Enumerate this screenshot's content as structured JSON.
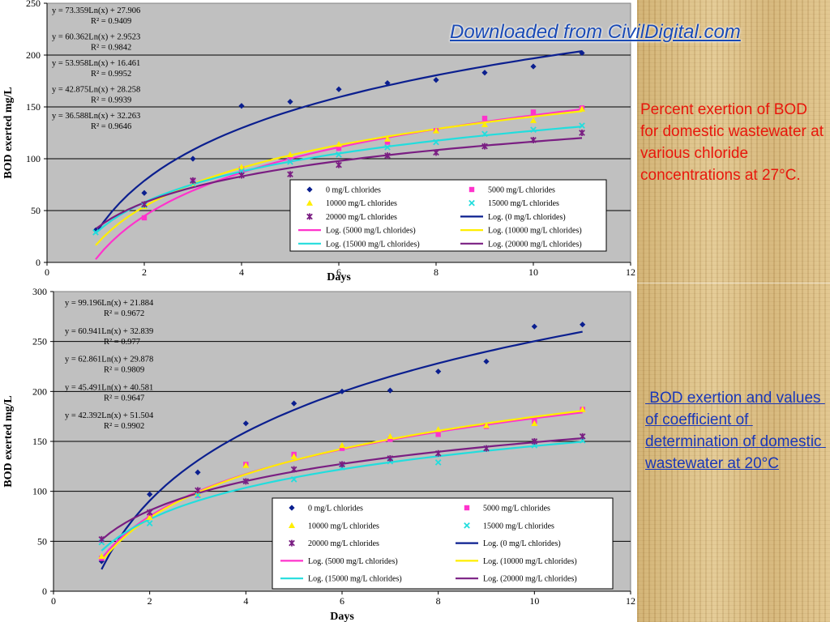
{
  "watermark": "Downloaded from CivilDigital.com",
  "captions": {
    "top": "Percent exertion of BOD for domestic wastewater at various chloride concentrations at 27°C.",
    "bottom": " BOD exertion and values of coefficient of determination of domestic wastewater at 20°C"
  },
  "colors": {
    "plot_bg": "#c0c0c0",
    "s0": "#0b1f8f",
    "s5000": "#ff33cc",
    "s10000": "#ffee00",
    "s15000": "#22dddd",
    "s20000": "#7a1e82"
  },
  "chart_data": [
    {
      "type": "scatter",
      "xlabel": "Days",
      "ylabel": "BOD exerted mg/L",
      "xlim": [
        0,
        12
      ],
      "ylim": [
        0,
        250
      ],
      "xticks": [
        "0",
        "2",
        "4",
        "6",
        "8",
        "10",
        "12"
      ],
      "yticks": [
        "0",
        "50",
        "100",
        "150",
        "200",
        "250"
      ],
      "grid": "horizontal",
      "legend_position": "bottom-right",
      "equations": [
        {
          "eq": "y = 73.359Ln(x) + 27.906",
          "r2": "R² = 0.9409"
        },
        {
          "eq": "y = 60.362Ln(x) + 2.9523",
          "r2": "R² = 0.9842"
        },
        {
          "eq": "y = 53.958Ln(x) + 16.461",
          "r2": "R² = 0.9952"
        },
        {
          "eq": "y = 42.875Ln(x) + 28.258",
          "r2": "R² = 0.9939"
        },
        {
          "eq": "y = 36.588Ln(x) + 32.263",
          "r2": "R² = 0.9646"
        }
      ],
      "series": [
        {
          "name": "0 mg/L chlorides",
          "marker": "diamond",
          "color": "#0b1f8f",
          "x": [
            1,
            2,
            3,
            4,
            5,
            6,
            7,
            8,
            9,
            10,
            11
          ],
          "y": [
            31,
            67,
            100,
            151,
            155,
            167,
            173,
            176,
            183,
            189,
            202
          ]
        },
        {
          "name": "5000 mg/L chlorides",
          "marker": "square",
          "color": "#ff33cc",
          "x": [
            2,
            3,
            4,
            5,
            6,
            7,
            8,
            9,
            10,
            11
          ],
          "y": [
            43,
            78,
            90,
            100,
            110,
            116,
            127,
            139,
            145,
            149
          ]
        },
        {
          "name": "10000 mg/L chlorides",
          "marker": "triangle",
          "color": "#ffee00",
          "x": [
            2,
            3,
            4,
            5,
            6,
            7,
            8,
            9,
            10,
            11
          ],
          "y": [
            54,
            76,
            92,
            104,
            114,
            119,
            127,
            133,
            137,
            148
          ]
        },
        {
          "name": "15000 mg/L chlorides",
          "marker": "x",
          "color": "#22dddd",
          "x": [
            1,
            2,
            3,
            4,
            5,
            6,
            7,
            8,
            9,
            10,
            11
          ],
          "y": [
            29,
            55,
            76,
            88,
            97,
            104,
            111,
            116,
            124,
            128,
            132
          ]
        },
        {
          "name": "20000 mg/L chlorides",
          "marker": "star",
          "color": "#7a1e82",
          "x": [
            2,
            3,
            4,
            5,
            6,
            7,
            8,
            9,
            10,
            11
          ],
          "y": [
            56,
            79,
            84,
            85,
            94,
            103,
            106,
            112,
            118,
            125
          ]
        }
      ],
      "fits": [
        {
          "name": "Log. (0 mg/L chlorides)",
          "a": 73.359,
          "b": 27.906,
          "color": "#0b1f8f"
        },
        {
          "name": "Log. (5000 mg/L chlorides)",
          "a": 60.362,
          "b": 2.9523,
          "color": "#ff33cc"
        },
        {
          "name": "Log. (10000 mg/L chlorides)",
          "a": 53.958,
          "b": 16.461,
          "color": "#ffee00"
        },
        {
          "name": "Log. (15000 mg/L chlorides)",
          "a": 42.875,
          "b": 28.258,
          "color": "#22dddd"
        },
        {
          "name": "Log. (20000 mg/L chlorides)",
          "a": 36.588,
          "b": 32.263,
          "color": "#7a1e82"
        }
      ]
    },
    {
      "type": "scatter",
      "xlabel": "Days",
      "ylabel": "BOD exerted mg/L",
      "xlim": [
        0,
        12
      ],
      "ylim": [
        0,
        300
      ],
      "xticks": [
        "0",
        "2",
        "4",
        "6",
        "8",
        "10",
        "12"
      ],
      "yticks": [
        "0",
        "50",
        "100",
        "150",
        "200",
        "250",
        "300"
      ],
      "grid": "horizontal",
      "legend_position": "bottom-right",
      "equations": [
        {
          "eq": "y = 99.196Ln(x) + 21.884",
          "r2": "R² = 0.9672"
        },
        {
          "eq": "y = 60.941Ln(x) + 32.839",
          "r2": "R² = 0.977"
        },
        {
          "eq": "y = 62.861Ln(x) + 29.878",
          "r2": "R² = 0.9809"
        },
        {
          "eq": "y = 45.491Ln(x) + 40.581",
          "r2": "R² = 0.9647"
        },
        {
          "eq": "y = 42.392Ln(x) + 51.504",
          "r2": "R² = 0.9902"
        }
      ],
      "series": [
        {
          "name": "0 mg/L chlorides",
          "marker": "diamond",
          "color": "#0b1f8f",
          "x": [
            1,
            2,
            3,
            4,
            5,
            6,
            7,
            8,
            9,
            10,
            11
          ],
          "y": [
            30,
            97,
            119,
            168,
            188,
            200,
            201,
            220,
            230,
            265,
            267
          ]
        },
        {
          "name": "5000 mg/L chlorides",
          "marker": "square",
          "color": "#ff33cc",
          "x": [
            1,
            2,
            3,
            4,
            5,
            6,
            7,
            8,
            9,
            10,
            11
          ],
          "y": [
            33,
            75,
            96,
            127,
            137,
            143,
            152,
            157,
            165,
            170,
            182
          ]
        },
        {
          "name": "10000 mg/L chlorides",
          "marker": "triangle",
          "color": "#ffee00",
          "x": [
            1,
            2,
            3,
            4,
            5,
            6,
            7,
            8,
            9,
            10,
            11
          ],
          "y": [
            35,
            74,
            98,
            126,
            135,
            146,
            155,
            162,
            166,
            168,
            182
          ]
        },
        {
          "name": "15000 mg/L chlorides",
          "marker": "x",
          "color": "#22dddd",
          "x": [
            1,
            2,
            3,
            4,
            5,
            6,
            7,
            8,
            9,
            10,
            11
          ],
          "y": [
            49,
            68,
            96,
            110,
            112,
            124,
            130,
            129,
            143,
            146,
            151
          ]
        },
        {
          "name": "20000 mg/L chlorides",
          "marker": "star",
          "color": "#7a1e82",
          "x": [
            1,
            2,
            3,
            4,
            5,
            6,
            7,
            8,
            9,
            10,
            11
          ],
          "y": [
            52,
            79,
            101,
            110,
            122,
            127,
            133,
            138,
            143,
            150,
            155
          ]
        }
      ],
      "fits": [
        {
          "name": "Log. (0 mg/L chlorides)",
          "a": 99.196,
          "b": 21.884,
          "color": "#0b1f8f"
        },
        {
          "name": "Log. (5000 mg/L chlorides)",
          "a": 60.941,
          "b": 32.839,
          "color": "#ff33cc"
        },
        {
          "name": "Log. (10000 mg/L chlorides)",
          "a": 62.861,
          "b": 29.878,
          "color": "#ffee00"
        },
        {
          "name": "Log. (15000 mg/L chlorides)",
          "a": 45.491,
          "b": 40.581,
          "color": "#22dddd"
        },
        {
          "name": "Log. (20000 mg/L chlorides)",
          "a": 42.392,
          "b": 51.504,
          "color": "#7a1e82"
        }
      ]
    }
  ]
}
